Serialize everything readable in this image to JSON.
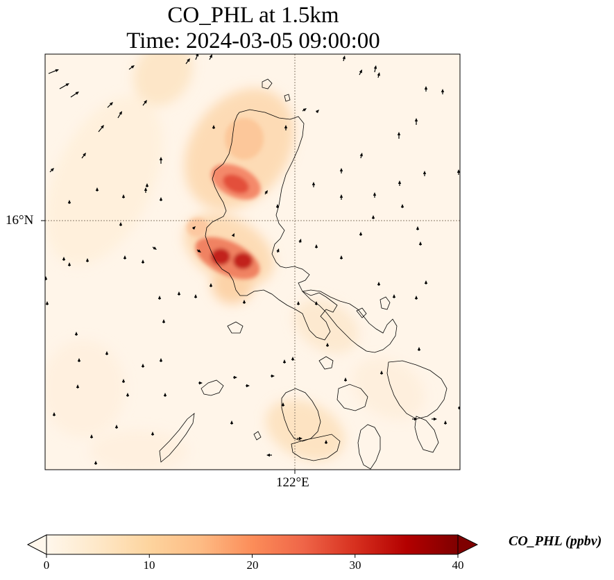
{
  "title": {
    "line1": "CO_PHL at 1.5km",
    "line2": "Time: 2024-03-05 09:00:00"
  },
  "map": {
    "lat_label": "16°N",
    "lon_label": "122°E",
    "gridline_color": "#8a7b6b",
    "background_color": "#fff5e9",
    "coastline_color": "#000000"
  },
  "colorbar": {
    "label": "CO_PHL (ppbv)",
    "ticks": [
      "0",
      "10",
      "20",
      "30",
      "40"
    ],
    "colormap": "OrRd",
    "range": [
      0,
      40
    ],
    "stops": [
      "#fff7ec",
      "#fee8c8",
      "#fdd49e",
      "#fdbb84",
      "#fc8d59",
      "#ef6548",
      "#d7301f",
      "#b30000",
      "#7f0000"
    ]
  },
  "chart_data": {
    "type": "heatmap",
    "variable": "CO_PHL",
    "level": "1.5km",
    "time": "2024-03-05 09:00:00",
    "units": "ppbv",
    "color_range": [
      0,
      40
    ],
    "gridlines": [
      "16°N",
      "122°E"
    ],
    "overlay": "wind vectors"
  }
}
